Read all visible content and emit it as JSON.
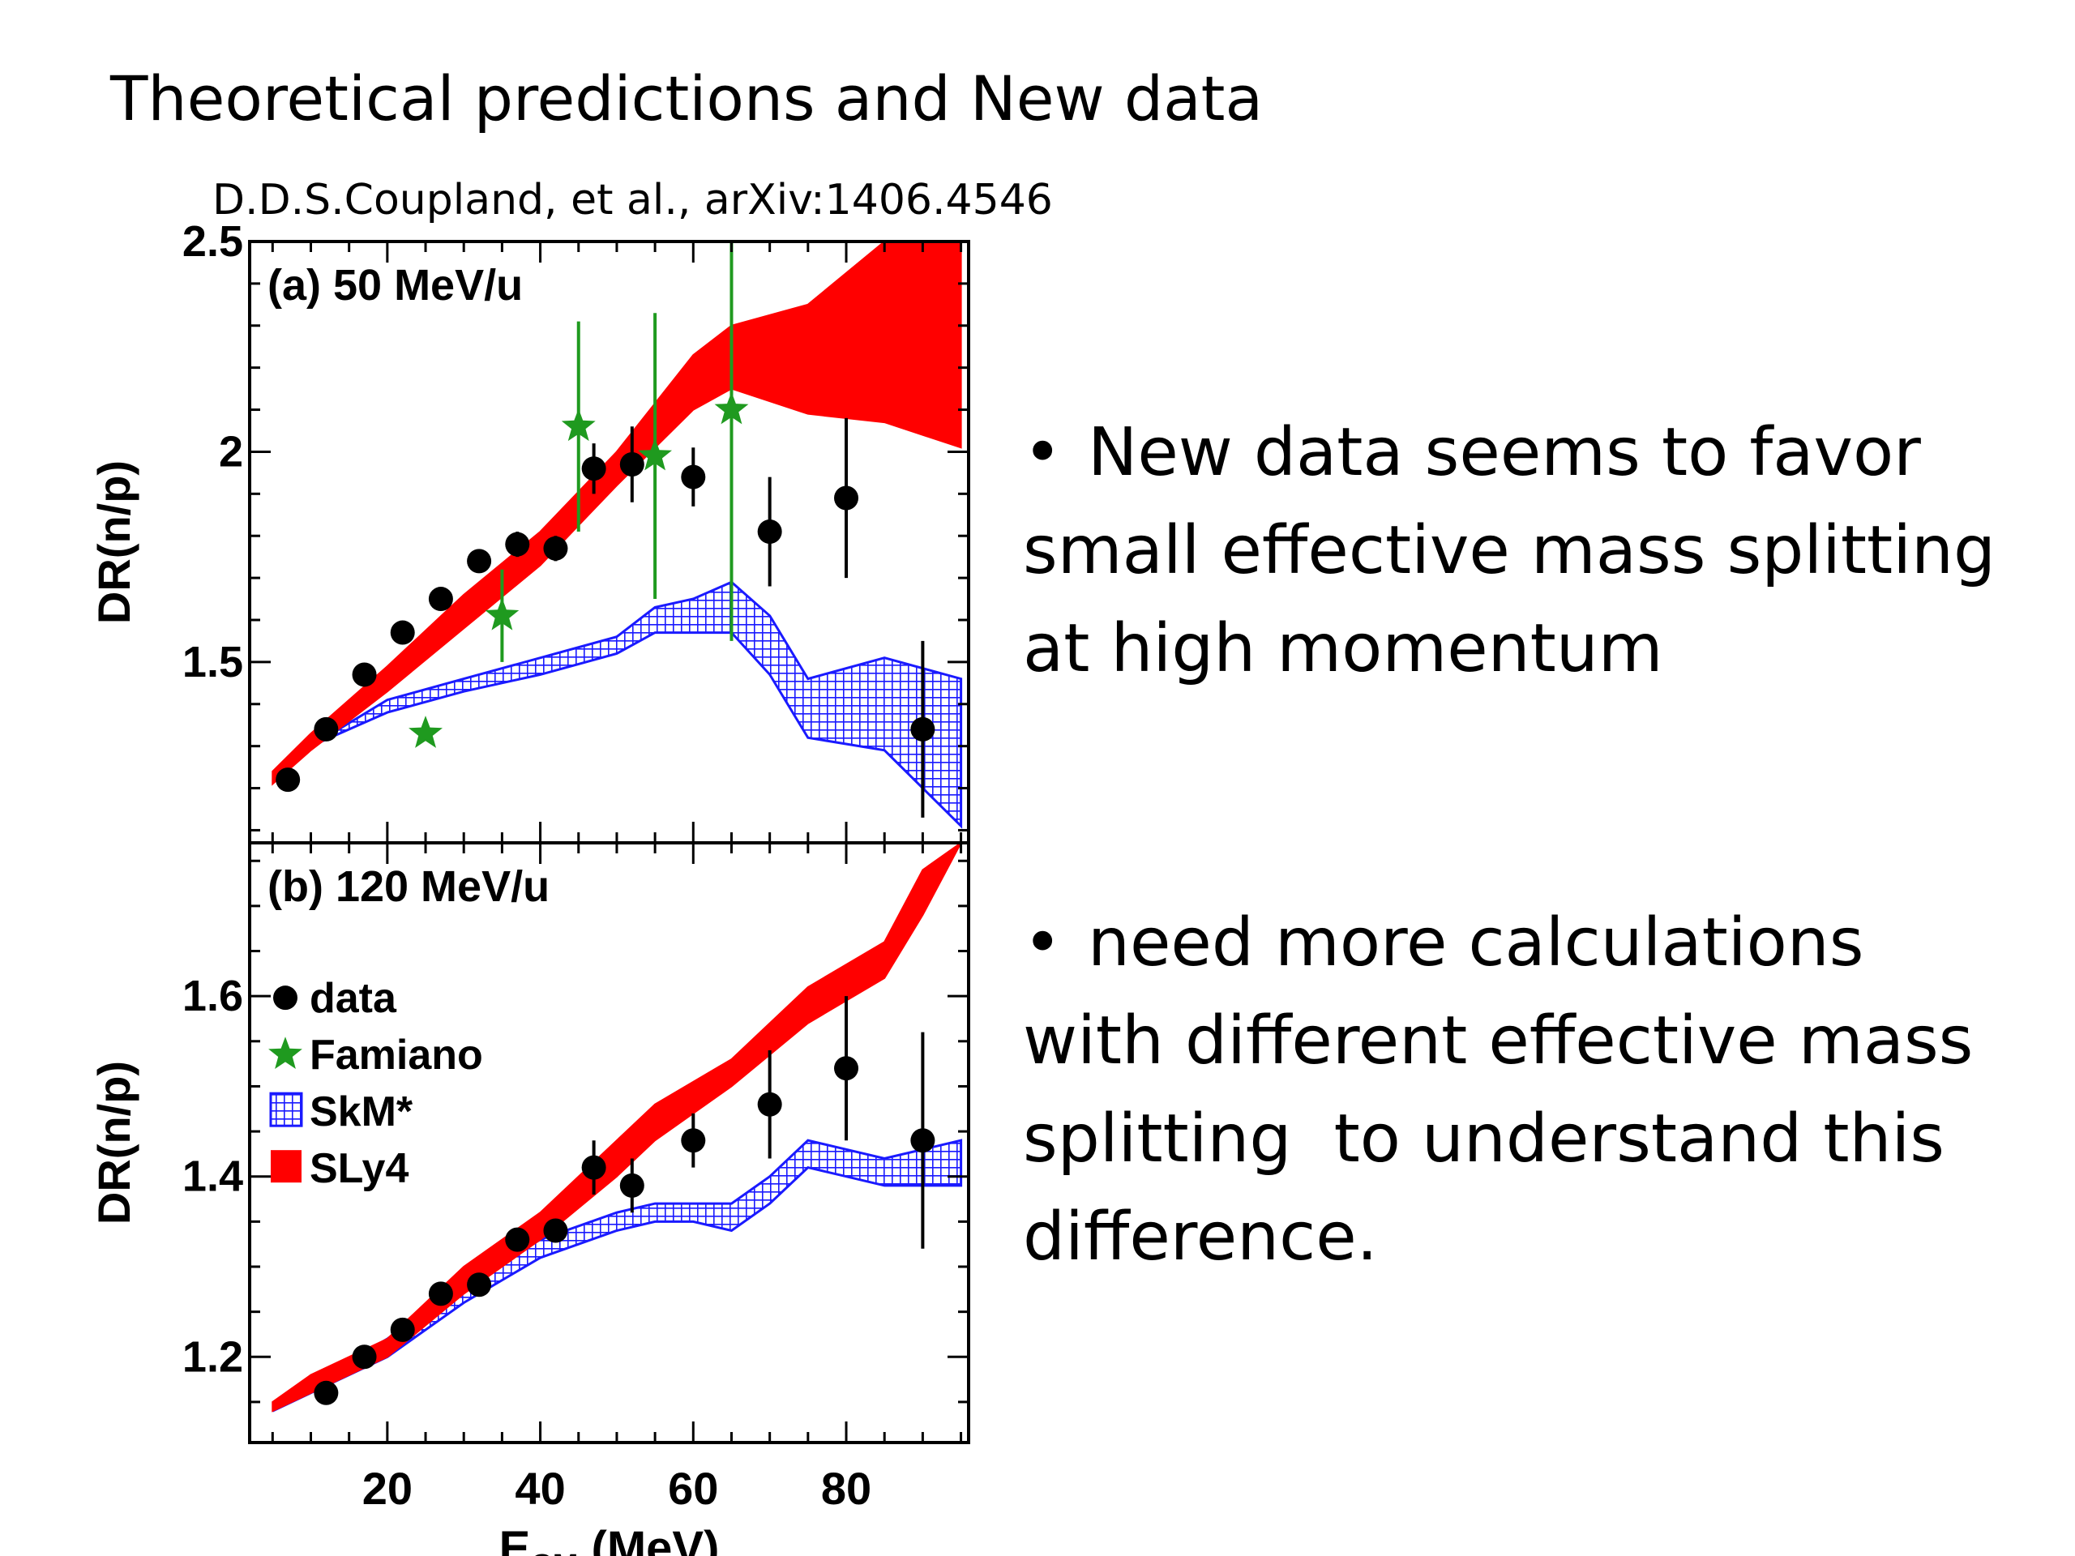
{
  "slide": {
    "title": "Theoretical predictions and New data",
    "citation": "D.D.S.Coupland, et al., arXiv:1406.4546",
    "bullets": [
      {
        "marker": "•",
        "text": "New data seems to favor small effective mass splitting at high momentum"
      },
      {
        "marker": "•",
        "text": "need more calculations with different effective mass splitting  to understand this difference."
      }
    ]
  },
  "colors": {
    "sly4": "#ff0000",
    "skm": "#1a1aff",
    "data": "#000000",
    "famiano": "#1f9a1f"
  },
  "chart_data": [
    {
      "type": "line",
      "panel_label": "(a) 50 MeV/u",
      "ylabel": "DR(n/p)",
      "xlim": [
        2,
        96
      ],
      "ylim": [
        1.07,
        2.5
      ],
      "yticks": [
        1.5,
        2,
        2.5
      ],
      "ytick_labels": [
        "1.5",
        "2",
        "2.5"
      ],
      "data": {
        "x": [
          7,
          12,
          17,
          22,
          27,
          32,
          37,
          42,
          47,
          52,
          60,
          70,
          80,
          90
        ],
        "y": [
          1.22,
          1.34,
          1.47,
          1.57,
          1.65,
          1.74,
          1.78,
          1.77,
          1.96,
          1.97,
          1.94,
          1.81,
          1.89,
          1.34
        ],
        "err": [
          0,
          0,
          0,
          0,
          0,
          0.02,
          0.03,
          0.03,
          0.06,
          0.09,
          0.07,
          0.13,
          0.19,
          0.21
        ]
      },
      "famiano": {
        "x": [
          25,
          35,
          45,
          55,
          65
        ],
        "y": [
          1.33,
          1.61,
          2.06,
          1.99,
          2.1
        ],
        "err": [
          0,
          0.11,
          0.25,
          0.34,
          0.55
        ]
      },
      "sly4_band": {
        "x": [
          5,
          10,
          20,
          30,
          40,
          50,
          60,
          65,
          75,
          85,
          95
        ],
        "lower": [
          1.21,
          1.29,
          1.43,
          1.58,
          1.73,
          1.92,
          2.1,
          2.15,
          2.09,
          2.07,
          2.01
        ],
        "upper": [
          1.24,
          1.33,
          1.49,
          1.66,
          1.81,
          2.0,
          2.23,
          2.3,
          2.35,
          2.5,
          2.5
        ]
      },
      "skm_band": {
        "x": [
          5,
          10,
          20,
          30,
          40,
          50,
          55,
          60,
          65,
          70,
          75,
          85,
          95
        ],
        "lower": [
          1.22,
          1.3,
          1.38,
          1.43,
          1.47,
          1.52,
          1.57,
          1.57,
          1.57,
          1.47,
          1.32,
          1.29,
          1.11
        ],
        "upper": [
          1.22,
          1.3,
          1.41,
          1.46,
          1.51,
          1.56,
          1.63,
          1.65,
          1.69,
          1.61,
          1.46,
          1.51,
          1.46
        ]
      }
    },
    {
      "type": "line",
      "panel_label": "(b) 120 MeV/u",
      "xlabel": "E",
      "xlabel_sub": "CM",
      "xlabel_unit": "(MeV)",
      "ylabel": "DR(n/p)",
      "xlim": [
        2,
        96
      ],
      "ylim": [
        1.105,
        1.77
      ],
      "yticks": [
        1.2,
        1.4,
        1.6
      ],
      "ytick_labels": [
        "1.2",
        "1.4",
        "1.6"
      ],
      "xticks": [
        20,
        40,
        60,
        80
      ],
      "xtick_labels": [
        "20",
        "40",
        "60",
        "80"
      ],
      "legend": {
        "placement": "left",
        "entries": [
          {
            "label": "data",
            "marker": "circle"
          },
          {
            "label": "Famiano",
            "marker": "star"
          },
          {
            "label": "SkM*",
            "marker": "hatched-square"
          },
          {
            "label": "SLy4",
            "marker": "filled-square"
          }
        ]
      },
      "data": {
        "x": [
          12,
          17,
          22,
          27,
          32,
          37,
          42,
          47,
          52,
          60,
          70,
          80,
          90
        ],
        "y": [
          1.16,
          1.2,
          1.23,
          1.27,
          1.28,
          1.33,
          1.34,
          1.41,
          1.39,
          1.44,
          1.48,
          1.52,
          1.44
        ],
        "err": [
          0,
          0,
          0,
          0,
          0,
          0,
          0,
          0.03,
          0.03,
          0.03,
          0.06,
          0.08,
          0.12
        ]
      },
      "sly4_band": {
        "x": [
          5,
          10,
          20,
          30,
          40,
          50,
          55,
          65,
          75,
          85,
          90,
          95
        ],
        "lower": [
          1.14,
          1.16,
          1.2,
          1.27,
          1.33,
          1.4,
          1.44,
          1.5,
          1.57,
          1.62,
          1.69,
          1.77
        ],
        "upper": [
          1.15,
          1.18,
          1.22,
          1.3,
          1.36,
          1.44,
          1.48,
          1.53,
          1.61,
          1.66,
          1.74,
          1.77
        ]
      },
      "skm_band": {
        "x": [
          5,
          10,
          20,
          30,
          40,
          50,
          55,
          60,
          65,
          70,
          75,
          80,
          85,
          95
        ],
        "lower": [
          1.14,
          1.16,
          1.2,
          1.26,
          1.31,
          1.34,
          1.35,
          1.35,
          1.34,
          1.37,
          1.41,
          1.4,
          1.39,
          1.39
        ],
        "upper": [
          1.14,
          1.17,
          1.22,
          1.28,
          1.33,
          1.36,
          1.37,
          1.37,
          1.37,
          1.4,
          1.44,
          1.43,
          1.42,
          1.44
        ]
      }
    }
  ]
}
